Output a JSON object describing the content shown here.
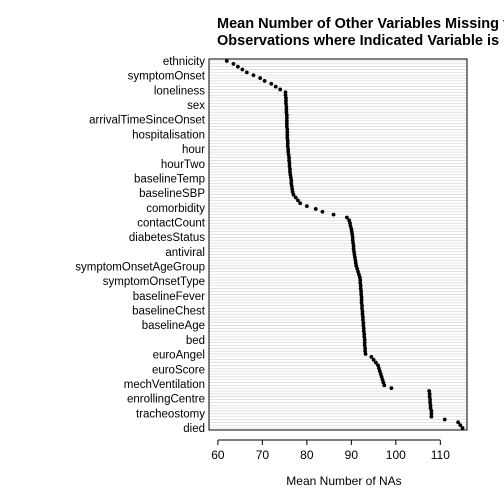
{
  "chart_data": {
    "type": "dotplot",
    "title": "Mean Number of Other Variables Missing for Observations where Indicated Variable is NA",
    "title_lines": [
      "Mean Number of Other Variables Missing for",
      "Observations where Indicated Variable is NA"
    ],
    "xlabel": "Mean Number of NAs",
    "ylabel": "",
    "xlim": [
      58,
      116
    ],
    "xticks": [
      60,
      70,
      80,
      90,
      100,
      110
    ],
    "grid": true,
    "visible_row_labels": [
      "ethnicity",
      "symptomOnset",
      "loneliness",
      "sex",
      "arrivalTimeSinceOnset",
      "hospitalisation",
      "hour",
      "hourTwo",
      "baselineTemp",
      "baselineSBP",
      "comorbidity",
      "contactCount",
      "diabetesStatus",
      "antiviral",
      "symptomOnsetAgeGroup",
      "symptomOnsetType",
      "baselineFever",
      "baselineChest",
      "baselineAge",
      "bed",
      "euroAngel",
      "euroScore",
      "mechVentilation",
      "enrollingCentre",
      "tracheostomy",
      "died"
    ],
    "values": [
      62,
      63.5,
      64.5,
      65.5,
      66.5,
      68,
      69.5,
      70.5,
      72,
      73,
      74,
      75.2,
      75.2,
      75.3,
      75.3,
      75.3,
      75.4,
      75.4,
      75.4,
      75.5,
      75.5,
      75.5,
      75.5,
      75.5,
      75.6,
      75.6,
      75.6,
      75.6,
      75.7,
      75.7,
      75.7,
      75.8,
      75.8,
      75.9,
      76,
      76,
      76.1,
      76.1,
      76.2,
      76.2,
      76.3,
      76.4,
      76.5,
      76.5,
      76.6,
      76.7,
      76.8,
      77,
      77.5,
      78,
      78.5,
      80,
      82,
      83.5,
      86,
      89,
      89.5,
      89.7,
      89.8,
      90,
      90.1,
      90.2,
      90.3,
      90.3,
      90.4,
      90.5,
      90.5,
      90.6,
      90.7,
      90.8,
      90.9,
      91,
      91.1,
      91.3,
      91.5,
      91.7,
      91.9,
      92,
      92,
      92.1,
      92.1,
      92.2,
      92.2,
      92.3,
      92.3,
      92.3,
      92.4,
      92.4,
      92.5,
      92.5,
      92.6,
      92.6,
      92.7,
      92.7,
      92.8,
      92.8,
      92.9,
      92.9,
      93,
      93,
      93,
      93.1,
      93.1,
      93.2,
      94.5,
      95,
      95.5,
      96,
      96.2,
      96.4,
      96.6,
      96.8,
      97,
      97.2,
      97.4,
      99,
      107.5,
      107.6,
      107.6,
      107.7,
      107.7,
      107.8,
      107.8,
      108,
      108,
      108,
      111,
      114,
      114.5,
      115
    ]
  }
}
